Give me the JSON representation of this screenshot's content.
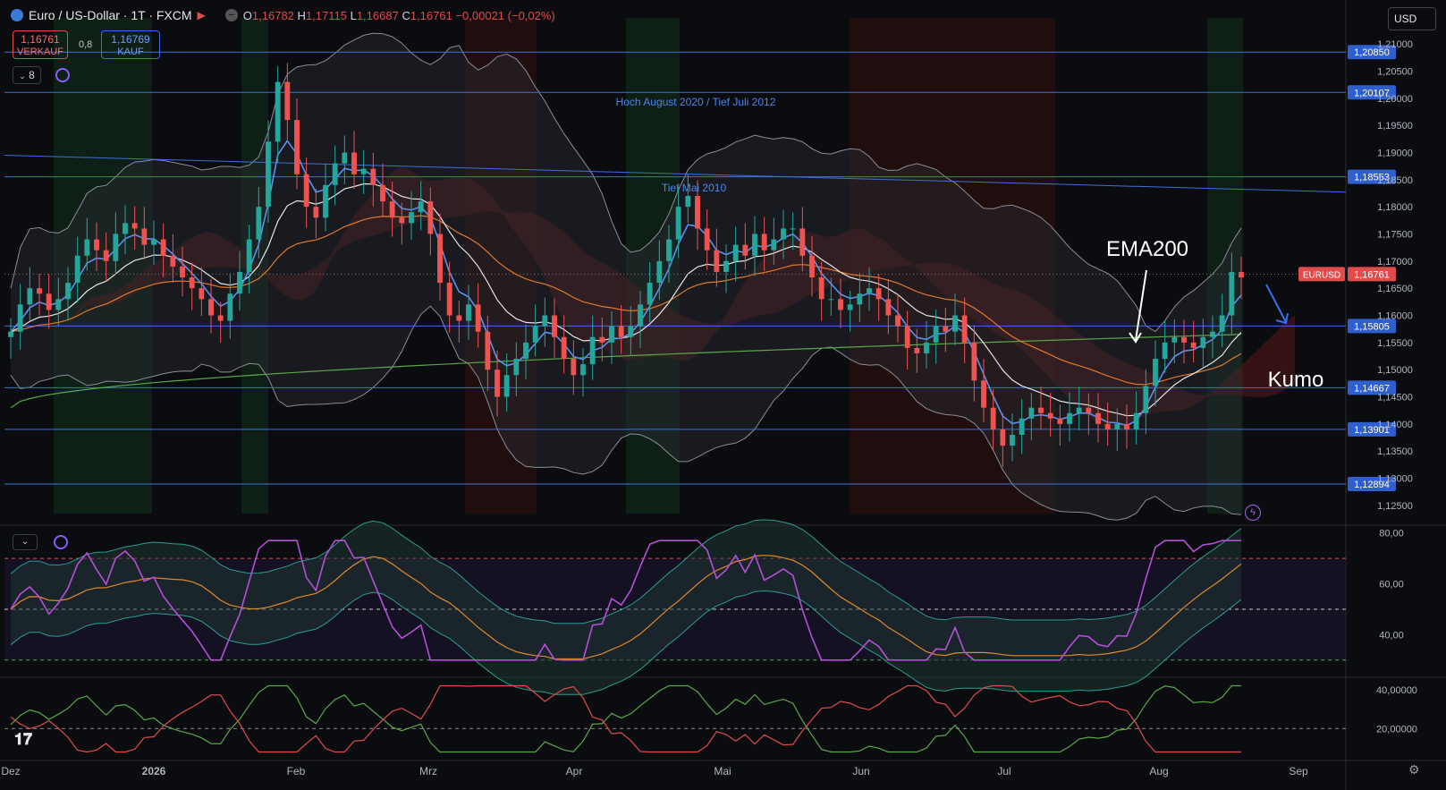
{
  "header": {
    "symbol": "Euro / US-Dollar · 1T · FXCM",
    "open_label": "O",
    "open": "1,16782",
    "high_label": "H",
    "high": "1,17115",
    "low_label": "L",
    "low": "1,16687",
    "close_label": "C",
    "close": "1,16761",
    "change": "−0,00021 (−0,02%)"
  },
  "trade": {
    "sell_price": "1,16761",
    "sell_label": "VERKAUF",
    "spread": "0,8",
    "buy_price": "1,16769",
    "buy_label": "KAUF"
  },
  "toolbar": {
    "indicator_count": "8",
    "currency": "USD"
  },
  "colors": {
    "up": "#26a69a",
    "down": "#ef5350",
    "hline": "#3f6fd8",
    "rsi": "#b54fd8",
    "ema200": "#5aa84a"
  },
  "chart_data": {
    "type": "line",
    "symbol": "EURUSD",
    "x_ticks": [
      "Dez",
      "2026",
      "Feb",
      "Mrz",
      "Apr",
      "Mai",
      "Jun",
      "Jul",
      "Aug",
      "Sep"
    ],
    "y_ticks": [
      "1,21000",
      "1,20500",
      "1,20000",
      "1,19500",
      "1,19000",
      "1,18500",
      "1,18000",
      "1,17500",
      "1,17000",
      "1,16500",
      "1,16000",
      "1,15500",
      "1,15000",
      "1,14500",
      "1,14000",
      "1,13500",
      "1,13000",
      "1,12500"
    ],
    "ylim": [
      1.1235,
      1.2115
    ],
    "last_price": {
      "label": "EURUSD",
      "value": "1,16761",
      "y": 1.16761
    },
    "levels": [
      {
        "label": "1,20850",
        "y": 1.2085
      },
      {
        "label": "1,20107",
        "y": 1.20107
      },
      {
        "label": "1,18553",
        "y": 1.18553
      },
      {
        "label": "1,15805",
        "y": 1.15805
      },
      {
        "label": "1,14667",
        "y": 1.14667
      },
      {
        "label": "1,13901",
        "y": 1.13901
      },
      {
        "label": "1,12894",
        "y": 1.12894
      }
    ],
    "annotations": [
      {
        "text": "Hoch August 2020 / Tief Juli 2012"
      },
      {
        "text": "Tief Mai 2010"
      },
      {
        "text": "EMA200"
      },
      {
        "text": "Kumo"
      }
    ],
    "close_series": [
      1.157,
      1.162,
      1.165,
      1.164,
      1.161,
      1.163,
      1.166,
      1.171,
      1.174,
      1.172,
      1.17,
      1.175,
      1.177,
      1.176,
      1.173,
      1.174,
      1.171,
      1.169,
      1.167,
      1.165,
      1.163,
      1.16,
      1.159,
      1.164,
      1.168,
      1.174,
      1.18,
      1.192,
      1.203,
      1.196,
      1.186,
      1.18,
      1.178,
      1.184,
      1.188,
      1.19,
      1.186,
      1.187,
      1.184,
      1.181,
      1.178,
      1.177,
      1.179,
      1.181,
      1.175,
      1.166,
      1.16,
      1.159,
      1.162,
      1.157,
      1.15,
      1.145,
      1.149,
      1.152,
      1.155,
      1.158,
      1.16,
      1.156,
      1.152,
      1.149,
      1.151,
      1.156,
      1.155,
      1.158,
      1.156,
      1.158,
      1.162,
      1.166,
      1.17,
      1.174,
      1.18,
      1.182,
      1.176,
      1.172,
      1.168,
      1.17,
      1.173,
      1.171,
      1.175,
      1.172,
      1.174,
      1.176,
      1.176,
      1.171,
      1.167,
      1.163,
      1.163,
      1.161,
      1.162,
      1.164,
      1.165,
      1.163,
      1.16,
      1.158,
      1.154,
      1.153,
      1.155,
      1.158,
      1.157,
      1.16,
      1.155,
      1.148,
      1.143,
      1.139,
      1.136,
      1.138,
      1.141,
      1.143,
      1.142,
      1.141,
      1.14,
      1.142,
      1.143,
      1.142,
      1.14,
      1.139,
      1.14,
      1.139,
      1.142,
      1.147,
      1.152,
      1.155,
      1.156,
      1.155,
      1.154,
      1.156,
      1.157,
      1.16,
      1.168,
      1.167
    ],
    "ema200": {
      "start": 1.143,
      "end": 1.1565
    },
    "panels": [
      {
        "name": "rsi",
        "y_ticks": [
          "80,00",
          "60,00",
          "40,00"
        ],
        "ylim": [
          25,
          82
        ],
        "bands": [
          70,
          50,
          30
        ]
      },
      {
        "name": "dmi",
        "y_ticks": [
          "40,00000",
          "20,00000"
        ],
        "ylim": [
          5,
          45
        ],
        "band": 20
      }
    ]
  }
}
